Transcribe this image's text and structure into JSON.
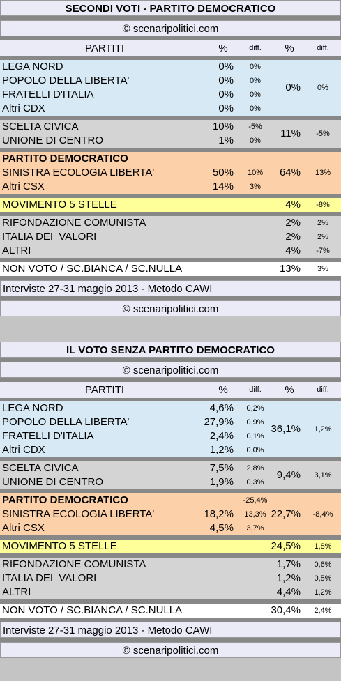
{
  "tables": [
    {
      "title": "SECONDI VOTI - PARTITO DEMOCRATICO",
      "source": "© scenaripolitici.com",
      "header": [
        "PARTITI",
        "%",
        "diff.",
        "%",
        "diff."
      ],
      "blocks": [
        {
          "color": "#d6e9f4",
          "rows": [
            {
              "name": "LEGA NORD",
              "pct": "0%",
              "diff": "0%"
            },
            {
              "name": "POPOLO DELLA LIBERTA'",
              "pct": "0%",
              "diff": "0%"
            },
            {
              "name": "FRATELLI D'ITALIA",
              "pct": "0%",
              "diff": "0%"
            },
            {
              "name": "Altri CDX",
              "pct": "0%",
              "diff": "0%"
            }
          ],
          "total": "0%",
          "total_diff": "0%"
        },
        {
          "color": "#d4d4d4",
          "rows": [
            {
              "name": "SCELTA CIVICA",
              "pct": "10%",
              "diff": "-5%"
            },
            {
              "name": "UNIONE DI CENTRO",
              "pct": "1%",
              "diff": "0%"
            }
          ],
          "total": "11%",
          "total_diff": "-5%"
        },
        {
          "color": "#fcd0a8",
          "rows": [
            {
              "name": "PARTITO DEMOCRATICO",
              "bold": true
            },
            {
              "name": "SINISTRA ECOLOGIA LIBERTA'",
              "pct": "50%",
              "diff": "10%"
            },
            {
              "name": "Altri CSX",
              "pct": "14%",
              "diff": "3%"
            }
          ],
          "total": "64%",
          "total_diff": "13%"
        },
        {
          "color": "#ffff99",
          "rows": [
            {
              "name": "MOVIMENTO 5 STELLE",
              "total": "4%",
              "total_diff": "-8%"
            }
          ]
        },
        {
          "color": "#d4d4d4",
          "rows": [
            {
              "name": "RIFONDAZIONE COMUNISTA",
              "total": "2%",
              "total_diff": "2%"
            },
            {
              "name": "ITALIA DEI  VALORI",
              "total": "2%",
              "total_diff": "2%"
            },
            {
              "name": "ALTRI",
              "total": "4%",
              "total_diff": "-7%"
            }
          ]
        },
        {
          "color": "#ffffff",
          "rows": [
            {
              "name": "NON VOTO / SC.BIANCA / SC.NULLA",
              "total": "13%",
              "total_diff": "3%"
            }
          ]
        }
      ],
      "note": "Interviste 27-31 maggio 2013 - Metodo CAWI",
      "footer": "© scenaripolitici.com"
    },
    {
      "title": "IL VOTO SENZA PARTITO DEMOCRATICO",
      "source": "© scenaripolitici.com",
      "header": [
        "PARTITI",
        "%",
        "diff.",
        "%",
        "diff."
      ],
      "blocks": [
        {
          "color": "#d6e9f4",
          "rows": [
            {
              "name": "LEGA NORD",
              "pct": "4,6%",
              "diff": "0,2%"
            },
            {
              "name": "POPOLO DELLA LIBERTA'",
              "pct": "27,9%",
              "diff": "0,9%"
            },
            {
              "name": "FRATELLI D'ITALIA",
              "pct": "2,4%",
              "diff": "0,1%"
            },
            {
              "name": "Altri CDX",
              "pct": "1,2%",
              "diff": "0,0%"
            }
          ],
          "total": "36,1%",
          "total_diff": "1,2%"
        },
        {
          "color": "#d4d4d4",
          "rows": [
            {
              "name": "SCELTA CIVICA",
              "pct": "7,5%",
              "diff": "2,8%"
            },
            {
              "name": "UNIONE DI CENTRO",
              "pct": "1,9%",
              "diff": "0,3%"
            }
          ],
          "total": "9,4%",
          "total_diff": "3,1%"
        },
        {
          "color": "#fcd0a8",
          "rows": [
            {
              "name": "PARTITO DEMOCRATICO",
              "bold": true,
              "diff": "-25,4%"
            },
            {
              "name": "SINISTRA ECOLOGIA LIBERTA'",
              "pct": "18,2%",
              "diff": "13,3%"
            },
            {
              "name": "Altri CSX",
              "pct": "4,5%",
              "diff": "3,7%"
            }
          ],
          "total": "22,7%",
          "total_diff": "-8,4%"
        },
        {
          "color": "#ffff99",
          "rows": [
            {
              "name": "MOVIMENTO 5 STELLE",
              "total": "24,5%",
              "total_diff": "1,8%"
            }
          ]
        },
        {
          "color": "#d4d4d4",
          "rows": [
            {
              "name": "RIFONDAZIONE COMUNISTA",
              "total": "1,7%",
              "total_diff": "0,6%"
            },
            {
              "name": "ITALIA DEI  VALORI",
              "total": "1,2%",
              "total_diff": "0,5%"
            },
            {
              "name": "ALTRI",
              "total": "4,4%",
              "total_diff": "1,2%"
            }
          ]
        },
        {
          "color": "#ffffff",
          "rows": [
            {
              "name": "NON VOTO / SC.BIANCA / SC.NULLA",
              "total": "30,4%",
              "total_diff": "2,4%"
            }
          ]
        }
      ],
      "note": "Interviste 27-31 maggio 2013 - Metodo CAWI",
      "footer": "© scenaripolitici.com"
    }
  ]
}
